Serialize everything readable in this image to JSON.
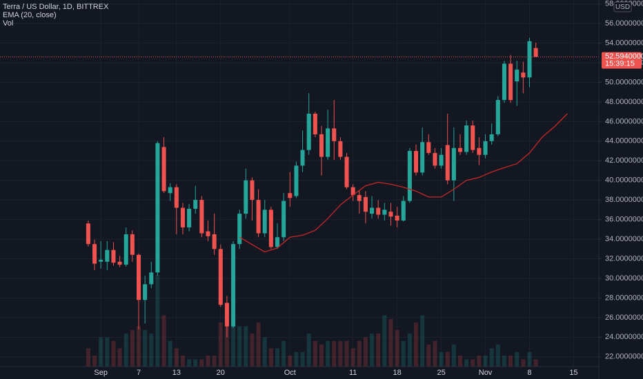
{
  "chart_data": {
    "type": "candlestick",
    "title": "Terra / US Dollar, 1D, BITTREX",
    "ema_label": "EMA (20, close)",
    "volume_label": "Vol",
    "currency": "USD",
    "up_color": "#26a69a",
    "down_color": "#ef5350",
    "x": [
      "Aug 30",
      "Aug 31",
      "Sep 1",
      "Sep 2",
      "Sep 3",
      "Sep 4",
      "Sep 5",
      "Sep 6",
      "Sep 7",
      "Sep 8",
      "Sep 9",
      "Sep 10",
      "Sep 11",
      "Sep 12",
      "Sep 13",
      "Sep 14",
      "Sep 15",
      "Sep 16",
      "Sep 17",
      "Sep 18",
      "Sep 19",
      "Sep 20",
      "Sep 21",
      "Sep 22",
      "Sep 23",
      "Sep 24",
      "Sep 25",
      "Sep 26",
      "Sep 27",
      "Sep 28",
      "Sep 29",
      "Sep 30",
      "Oct 1",
      "Oct 2",
      "Oct 3",
      "Oct 4",
      "Oct 5",
      "Oct 6",
      "Oct 7",
      "Oct 8",
      "Oct 9",
      "Oct 10",
      "Oct 11",
      "Oct 12",
      "Oct 13",
      "Oct 14",
      "Oct 15",
      "Oct 16",
      "Oct 17",
      "Oct 18",
      "Oct 19",
      "Oct 20",
      "Oct 21",
      "Oct 22",
      "Oct 23",
      "Oct 24",
      "Oct 25",
      "Oct 26",
      "Oct 27",
      "Oct 28",
      "Oct 29",
      "Oct 30",
      "Oct 31",
      "Nov 1",
      "Nov 2",
      "Nov 3",
      "Nov 4",
      "Nov 5",
      "Nov 6",
      "Nov 7",
      "Nov 8",
      "Nov 9"
    ],
    "open": [
      35.6,
      33.5,
      31.7,
      31.7,
      32.9,
      31.7,
      31.4,
      34.5,
      32.4,
      27.8,
      29.4,
      30.6,
      43.4,
      38.7,
      39.3,
      37.2,
      35.2,
      37.1,
      38.0,
      34.8,
      34.5,
      33.0,
      27.5,
      25.1,
      33.5,
      36.6,
      40.0,
      38.0,
      34.6,
      37.0,
      33.2,
      34.2,
      38.7,
      38.4,
      41.5,
      43.1,
      46.8,
      44.7,
      42.4,
      45.3,
      44.0,
      42.4,
      39.3,
      38.5,
      38.3,
      36.6,
      37.2,
      36.5,
      36.8,
      36.4,
      35.9,
      37.9,
      43.0,
      40.8,
      43.9,
      42.8,
      41.5,
      43.6,
      40.0,
      43.3,
      42.9,
      45.6,
      43.3,
      42.6,
      44.0,
      44.7,
      48.2,
      51.9,
      50.1,
      51.0,
      50.5,
      53.5
    ],
    "high": [
      35.9,
      33.95,
      33.8,
      33.8,
      33.7,
      32.3,
      35.2,
      34.9,
      32.55,
      30.3,
      31.7,
      44.0,
      44.4,
      39.7,
      39.6,
      37.7,
      37.6,
      39.45,
      38.4,
      35.9,
      36.6,
      33.45,
      28.2,
      33.8,
      37.0,
      41.2,
      40.3,
      39.1,
      38.0,
      37.3,
      35.6,
      38.7,
      40.85,
      41.9,
      45.1,
      48.9,
      47.0,
      45.55,
      47.2,
      48.2,
      44.4,
      42.8,
      39.6,
      39.0,
      38.9,
      38.4,
      38.0,
      37.7,
      37.7,
      37.3,
      38.4,
      43.3,
      43.65,
      45.4,
      44.7,
      43.3,
      43.3,
      46.8,
      45.4,
      44.7,
      46.1,
      46.1,
      44.4,
      44.7,
      45.8,
      48.6,
      52.2,
      52.8,
      52.2,
      52.1,
      54.55,
      54.05
    ],
    "low": [
      33.25,
      30.85,
      31.0,
      30.85,
      31.3,
      31.15,
      31.2,
      31.7,
      24.8,
      25.4,
      29.0,
      30.3,
      38.7,
      37.9,
      34.5,
      34.5,
      34.8,
      36.6,
      34.2,
      33.8,
      32.4,
      27.1,
      24.0,
      24.95,
      33.0,
      36.1,
      35.9,
      34.2,
      34.2,
      33.0,
      33.0,
      33.8,
      37.3,
      38.2,
      40.85,
      42.6,
      44.4,
      40.5,
      42.1,
      42.1,
      42.1,
      39.1,
      37.9,
      36.6,
      35.6,
      36.1,
      36.1,
      35.9,
      35.4,
      35.2,
      35.8,
      37.7,
      40.5,
      40.5,
      42.6,
      41.2,
      41.2,
      39.6,
      37.9,
      42.6,
      42.6,
      42.8,
      41.55,
      42.25,
      43.65,
      44.5,
      47.9,
      47.9,
      47.6,
      48.9,
      49.5,
      52.59
    ],
    "close": [
      33.5,
      31.5,
      31.9,
      32.9,
      31.6,
      31.4,
      34.5,
      32.4,
      27.8,
      29.4,
      30.6,
      43.8,
      38.9,
      39.3,
      37.2,
      35.2,
      37.1,
      38.0,
      34.6,
      34.3,
      33.0,
      27.3,
      25.1,
      33.5,
      36.6,
      40.0,
      38.0,
      34.6,
      37.0,
      33.2,
      34.2,
      37.9,
      38.2,
      41.5,
      43.1,
      46.8,
      44.7,
      42.4,
      45.3,
      44.0,
      42.4,
      39.3,
      38.5,
      37.9,
      36.8,
      37.2,
      36.5,
      37.0,
      36.3,
      35.9,
      37.9,
      43.0,
      40.8,
      43.9,
      42.8,
      41.5,
      42.6,
      40.0,
      43.3,
      42.9,
      45.6,
      43.1,
      42.6,
      44.0,
      44.7,
      48.2,
      51.9,
      48.2,
      51.3,
      50.5,
      54.2,
      52.594
    ],
    "volume": [
      5,
      3,
      8,
      8,
      7,
      5,
      9,
      10,
      11,
      10,
      9,
      25,
      14,
      7,
      5,
      3,
      2,
      2,
      2,
      3,
      3,
      12,
      15,
      18,
      11,
      11,
      9,
      12,
      8,
      5,
      5,
      7,
      3,
      4,
      4,
      9,
      7,
      6,
      7,
      7,
      7,
      7,
      5,
      7,
      8,
      9,
      9,
      14,
      13,
      10,
      7,
      9,
      12,
      14,
      6,
      7,
      4,
      4,
      6,
      3,
      2,
      2,
      3,
      3,
      5,
      6,
      3,
      3,
      4,
      2,
      4,
      2
    ],
    "volume_ylim": [
      0,
      100
    ],
    "ema": {
      "color": "#c62828",
      "x": [
        "Sep 23",
        "Sep 25",
        "Sep 27",
        "Sep 29",
        "Oct 1",
        "Oct 3",
        "Oct 5",
        "Oct 7",
        "Oct 9",
        "Oct 11",
        "Oct 13",
        "Oct 15",
        "Oct 17",
        "Oct 19",
        "Oct 21",
        "Oct 23",
        "Oct 25",
        "Oct 27",
        "Oct 29",
        "Oct 31",
        "Nov 2",
        "Nov 4",
        "Nov 6",
        "Nov 8",
        "Nov 10",
        "Nov 12",
        "Nov 14"
      ],
      "values": [
        34.2,
        33.45,
        32.7,
        33.1,
        34.2,
        34.4,
        34.9,
        36.1,
        37.5,
        38.5,
        39.45,
        39.8,
        39.6,
        39.3,
        38.9,
        38.3,
        38.3,
        39.1,
        40.0,
        40.3,
        40.85,
        41.3,
        41.7,
        42.8,
        44.4,
        45.5,
        46.8
      ]
    },
    "last_price": 52.594,
    "last_price_label": "52.59400000",
    "countdown": "15:39:15",
    "xlim": [
      "Aug 16",
      "Nov 19"
    ],
    "xticks": [
      {
        "value": "Sep 1",
        "label": "Sep"
      },
      {
        "value": "Sep 7",
        "label": "7"
      },
      {
        "value": "Sep 13",
        "label": "13"
      },
      {
        "value": "Sep 20",
        "label": "20"
      },
      {
        "value": "Oct 1",
        "label": "Oct"
      },
      {
        "value": "Oct 11",
        "label": "11"
      },
      {
        "value": "Oct 18",
        "label": "18"
      },
      {
        "value": "Oct 25",
        "label": "25"
      },
      {
        "value": "Nov 1",
        "label": "Nov"
      },
      {
        "value": "Nov 8",
        "label": "8"
      },
      {
        "value": "Nov 15",
        "label": "15"
      }
    ],
    "ylim": [
      21,
      58.4
    ],
    "yticks": [
      {
        "value": 22,
        "label": "22.00000000"
      },
      {
        "value": 24,
        "label": "24.00000000"
      },
      {
        "value": 26,
        "label": "26.00000000"
      },
      {
        "value": 28,
        "label": "28.00000000"
      },
      {
        "value": 30,
        "label": "30.00000000"
      },
      {
        "value": 32,
        "label": "32.00000000"
      },
      {
        "value": 34,
        "label": "34.00000000"
      },
      {
        "value": 36,
        "label": "36.00000000"
      },
      {
        "value": 38,
        "label": "38.00000000"
      },
      {
        "value": 40,
        "label": "40.00000000"
      },
      {
        "value": 42,
        "label": "42.00000000"
      },
      {
        "value": 44,
        "label": "44.00000000"
      },
      {
        "value": 46,
        "label": "46.00000000"
      },
      {
        "value": 48,
        "label": "48.00000000"
      },
      {
        "value": 50,
        "label": "50.00000000"
      },
      {
        "value": 52,
        "label": "52.00000000"
      },
      {
        "value": 54,
        "label": "54.00000000"
      },
      {
        "value": 56,
        "label": "56.00000000"
      },
      {
        "value": 58,
        "label": "58.00000000"
      }
    ],
    "grid": true
  }
}
